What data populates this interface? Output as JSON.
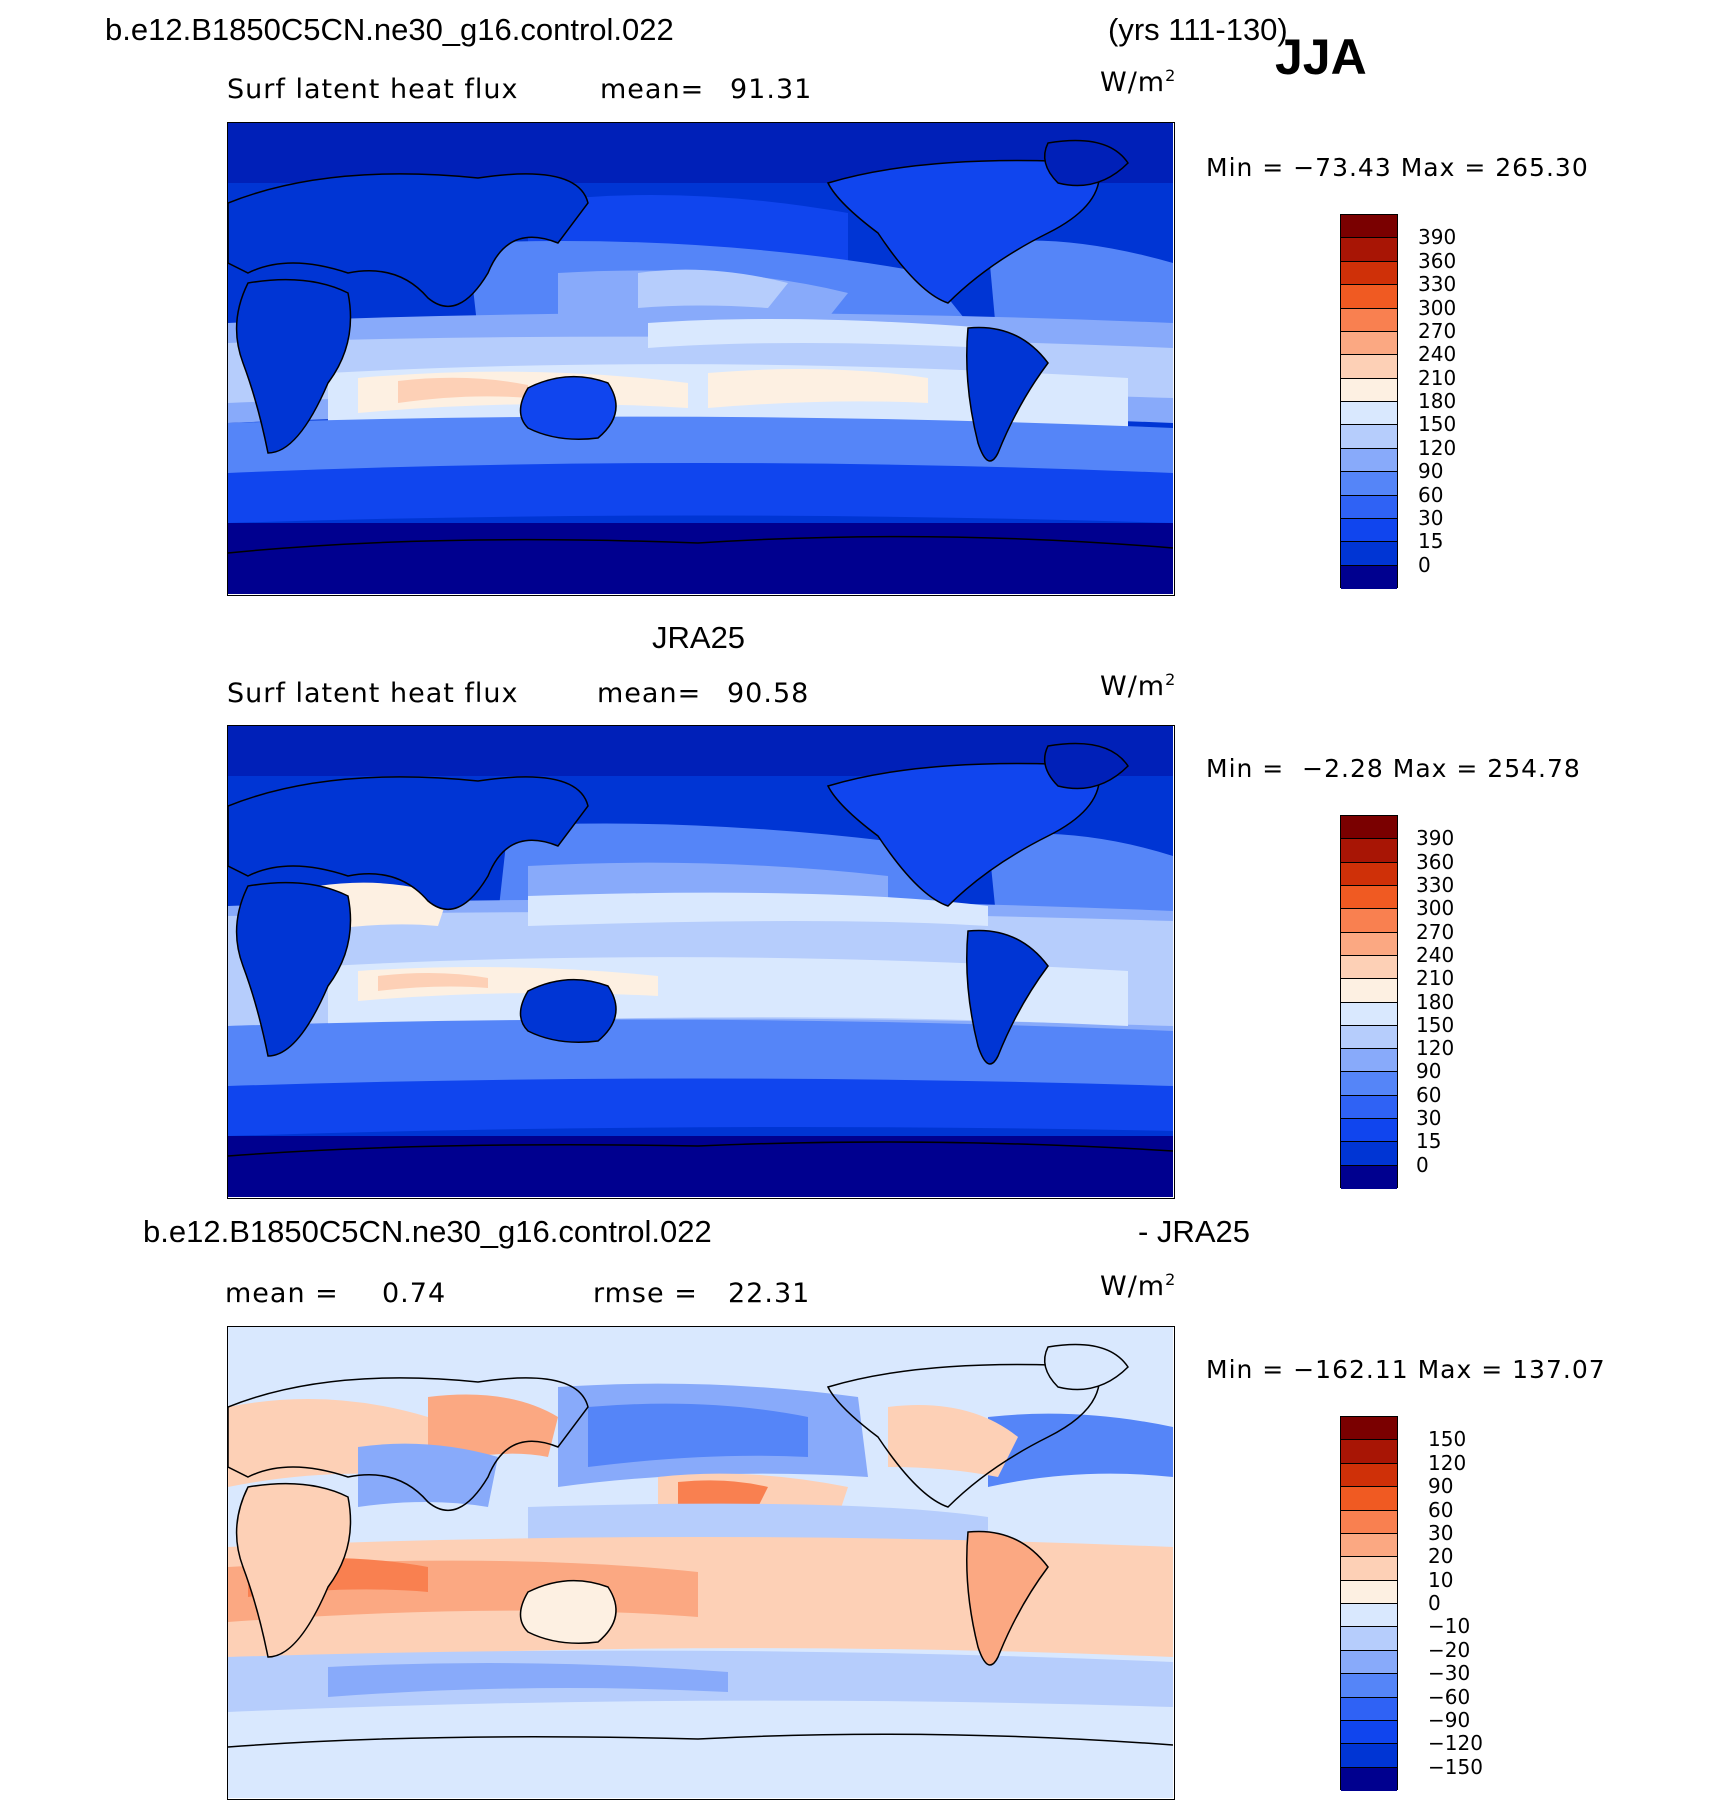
{
  "header": {
    "case_name": "b.e12.B1850C5CN.ne30_g16.control.022",
    "years": "(yrs 111-130)",
    "season": "JJA"
  },
  "colors": {
    "flux": [
      "#00008f",
      "#0020b8",
      "#0035d4",
      "#1045ee",
      "#2f62f5",
      "#5585f8",
      "#88aafa",
      "#b6cdfc",
      "#d9e8fe",
      "#fdf0e2",
      "#fdd0b6",
      "#fba882",
      "#f98050",
      "#f05a22",
      "#cf3008",
      "#a81505",
      "#7a0000"
    ],
    "diff": [
      "#00008f",
      "#0020b8",
      "#0035d4",
      "#1045ee",
      "#2f62f5",
      "#5585f8",
      "#88aafa",
      "#b6cdfc",
      "#d9e8fe",
      "#fdf0e2",
      "#fdd0b6",
      "#fba882",
      "#f98050",
      "#f05a22",
      "#cf3008",
      "#a81505",
      "#7a0000"
    ],
    "land_outline": "#000000"
  },
  "panels": [
    {
      "id": "model",
      "variable": "Surf  latent  heat  flux",
      "mean_label": "mean=",
      "mean_value": "91.31",
      "units": "W/m",
      "units_sup": "2",
      "min_label": "Min  =",
      "min_value": "−73.43",
      "max_label": "Max  =",
      "max_value": "265.30",
      "colorbar_labels": [
        "390",
        "360",
        "330",
        "300",
        "270",
        "240",
        "210",
        "180",
        "150",
        "120",
        "90",
        "60",
        "30",
        "15",
        "0"
      ]
    },
    {
      "id": "obs",
      "title": "JRA25",
      "variable": "Surf  latent  heat  flux",
      "mean_label": "mean=",
      "mean_value": "90.58",
      "units": "W/m",
      "units_sup": "2",
      "min_label": "Min  =",
      "min_value": "−2.28",
      "max_label": "Max  =",
      "max_value": "254.78",
      "colorbar_labels": [
        "390",
        "360",
        "330",
        "300",
        "270",
        "240",
        "210",
        "180",
        "150",
        "120",
        "90",
        "60",
        "30",
        "15",
        "0"
      ]
    },
    {
      "id": "diff",
      "title_left": "b.e12.B1850C5CN.ne30_g16.control.022",
      "title_right": "- JRA25",
      "mean_label": "mean  =",
      "mean_value": "0.74",
      "rmse_label": "rmse  =",
      "rmse_value": "22.31",
      "units": "W/m",
      "units_sup": "2",
      "min_label": "Min  =",
      "min_value": "−162.11",
      "max_label": "Max  =",
      "max_value": "137.07",
      "colorbar_labels": [
        "150",
        "120",
        "90",
        "60",
        "30",
        "20",
        "10",
        "0",
        "−10",
        "−20",
        "−30",
        "−60",
        "−90",
        "−120",
        "−150"
      ]
    }
  ],
  "chart_data": [
    {
      "type": "heatmap",
      "title": "Surf  latent  heat  flux",
      "subtitle": "b.e12.B1850C5CN.ne30_g16.control.022 (yrs 111-130) JJA",
      "units": "W/m2",
      "mean": 91.31,
      "min": -73.43,
      "max": 265.3,
      "contour_levels": [
        0,
        15,
        30,
        60,
        90,
        120,
        150,
        180,
        210,
        240,
        270,
        300,
        330,
        360,
        390
      ]
    },
    {
      "type": "heatmap",
      "title": "JRA25",
      "subtitle": "Surf  latent  heat  flux",
      "units": "W/m2",
      "mean": 90.58,
      "min": -2.28,
      "max": 254.78,
      "contour_levels": [
        0,
        15,
        30,
        60,
        90,
        120,
        150,
        180,
        210,
        240,
        270,
        300,
        330,
        360,
        390
      ]
    },
    {
      "type": "heatmap",
      "title": "b.e12.B1850C5CN.ne30_g16.control.022 - JRA25",
      "units": "W/m2",
      "mean": 0.74,
      "rmse": 22.31,
      "min": -162.11,
      "max": 137.07,
      "contour_levels": [
        -150,
        -120,
        -90,
        -60,
        -30,
        -20,
        -10,
        0,
        10,
        20,
        30,
        60,
        90,
        120,
        150
      ]
    }
  ]
}
